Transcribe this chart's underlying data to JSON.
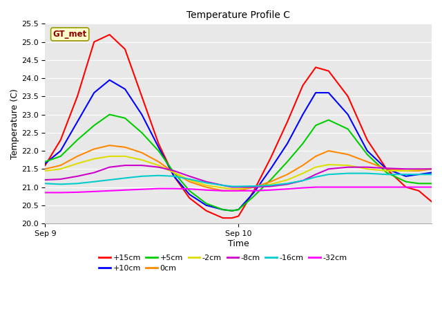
{
  "title": "Temperature Profile C",
  "xlabel": "Time",
  "ylabel": "Temperature (C)",
  "ylim": [
    20.0,
    25.5
  ],
  "yticks": [
    20.0,
    20.5,
    21.0,
    21.5,
    22.0,
    22.5,
    23.0,
    23.5,
    24.0,
    24.5,
    25.0,
    25.5
  ],
  "xtick_positions": [
    0,
    1.5
  ],
  "xtick_labels": [
    "Sep 9",
    "Sep 10"
  ],
  "xlim": [
    0,
    3.0
  ],
  "fig_bg": "#ffffff",
  "plot_bg": "#e8e8e8",
  "legend_label": "GT_met",
  "legend_bg": "#ffffcc",
  "legend_border": "#999900",
  "series": [
    {
      "label": "+15cm",
      "color": "#ff0000",
      "points": [
        [
          0,
          21.6
        ],
        [
          0.12,
          22.3
        ],
        [
          0.25,
          23.5
        ],
        [
          0.38,
          25.0
        ],
        [
          0.5,
          25.2
        ],
        [
          0.62,
          24.8
        ],
        [
          0.75,
          23.5
        ],
        [
          0.88,
          22.2
        ],
        [
          1.0,
          21.3
        ],
        [
          1.12,
          20.7
        ],
        [
          1.25,
          20.35
        ],
        [
          1.38,
          20.15
        ],
        [
          1.45,
          20.15
        ],
        [
          1.5,
          20.2
        ],
        [
          1.62,
          20.9
        ],
        [
          1.75,
          21.8
        ],
        [
          1.88,
          22.8
        ],
        [
          2.0,
          23.8
        ],
        [
          2.1,
          24.3
        ],
        [
          2.2,
          24.2
        ],
        [
          2.35,
          23.5
        ],
        [
          2.5,
          22.3
        ],
        [
          2.65,
          21.5
        ],
        [
          2.8,
          21.0
        ],
        [
          2.9,
          20.9
        ],
        [
          3.0,
          20.6
        ]
      ]
    },
    {
      "label": "+10cm",
      "color": "#0000ff",
      "points": [
        [
          0,
          21.65
        ],
        [
          0.12,
          22.0
        ],
        [
          0.25,
          22.8
        ],
        [
          0.38,
          23.6
        ],
        [
          0.5,
          23.95
        ],
        [
          0.62,
          23.7
        ],
        [
          0.75,
          23.0
        ],
        [
          0.88,
          22.1
        ],
        [
          1.0,
          21.3
        ],
        [
          1.12,
          20.8
        ],
        [
          1.25,
          20.5
        ],
        [
          1.38,
          20.38
        ],
        [
          1.45,
          20.35
        ],
        [
          1.5,
          20.38
        ],
        [
          1.62,
          20.85
        ],
        [
          1.75,
          21.5
        ],
        [
          1.88,
          22.2
        ],
        [
          2.0,
          23.0
        ],
        [
          2.1,
          23.6
        ],
        [
          2.2,
          23.6
        ],
        [
          2.35,
          23.0
        ],
        [
          2.5,
          22.0
        ],
        [
          2.65,
          21.5
        ],
        [
          2.8,
          21.3
        ],
        [
          2.9,
          21.35
        ],
        [
          3.0,
          21.4
        ]
      ]
    },
    {
      "label": "+5cm",
      "color": "#00cc00",
      "points": [
        [
          0,
          21.7
        ],
        [
          0.12,
          21.85
        ],
        [
          0.25,
          22.3
        ],
        [
          0.38,
          22.7
        ],
        [
          0.5,
          23.0
        ],
        [
          0.62,
          22.9
        ],
        [
          0.75,
          22.5
        ],
        [
          0.88,
          22.0
        ],
        [
          1.0,
          21.4
        ],
        [
          1.12,
          20.9
        ],
        [
          1.25,
          20.55
        ],
        [
          1.38,
          20.38
        ],
        [
          1.45,
          20.35
        ],
        [
          1.5,
          20.38
        ],
        [
          1.62,
          20.75
        ],
        [
          1.75,
          21.2
        ],
        [
          1.88,
          21.7
        ],
        [
          2.0,
          22.2
        ],
        [
          2.1,
          22.7
        ],
        [
          2.2,
          22.85
        ],
        [
          2.35,
          22.6
        ],
        [
          2.5,
          21.9
        ],
        [
          2.65,
          21.4
        ],
        [
          2.8,
          21.15
        ],
        [
          2.9,
          21.1
        ],
        [
          3.0,
          21.1
        ]
      ]
    },
    {
      "label": "0cm",
      "color": "#ff8800",
      "points": [
        [
          0,
          21.5
        ],
        [
          0.12,
          21.6
        ],
        [
          0.25,
          21.85
        ],
        [
          0.38,
          22.05
        ],
        [
          0.5,
          22.15
        ],
        [
          0.62,
          22.1
        ],
        [
          0.75,
          21.95
        ],
        [
          0.88,
          21.7
        ],
        [
          1.0,
          21.4
        ],
        [
          1.12,
          21.15
        ],
        [
          1.25,
          21.0
        ],
        [
          1.38,
          20.9
        ],
        [
          1.45,
          20.9
        ],
        [
          1.5,
          20.9
        ],
        [
          1.62,
          21.0
        ],
        [
          1.75,
          21.15
        ],
        [
          1.88,
          21.35
        ],
        [
          2.0,
          21.6
        ],
        [
          2.1,
          21.85
        ],
        [
          2.2,
          22.0
        ],
        [
          2.35,
          21.9
        ],
        [
          2.5,
          21.7
        ],
        [
          2.65,
          21.5
        ],
        [
          2.8,
          21.45
        ],
        [
          2.9,
          21.45
        ],
        [
          3.0,
          21.5
        ]
      ]
    },
    {
      "label": "-2cm",
      "color": "#dddd00",
      "points": [
        [
          0,
          21.45
        ],
        [
          0.12,
          21.5
        ],
        [
          0.25,
          21.65
        ],
        [
          0.38,
          21.78
        ],
        [
          0.5,
          21.85
        ],
        [
          0.62,
          21.85
        ],
        [
          0.75,
          21.75
        ],
        [
          0.88,
          21.6
        ],
        [
          1.0,
          21.4
        ],
        [
          1.12,
          21.2
        ],
        [
          1.25,
          21.05
        ],
        [
          1.38,
          20.98
        ],
        [
          1.45,
          20.95
        ],
        [
          1.5,
          20.95
        ],
        [
          1.62,
          21.0
        ],
        [
          1.75,
          21.08
        ],
        [
          1.88,
          21.2
        ],
        [
          2.0,
          21.38
        ],
        [
          2.1,
          21.55
        ],
        [
          2.2,
          21.62
        ],
        [
          2.35,
          21.6
        ],
        [
          2.5,
          21.5
        ],
        [
          2.65,
          21.45
        ],
        [
          2.8,
          21.45
        ],
        [
          2.9,
          21.48
        ],
        [
          3.0,
          21.5
        ]
      ]
    },
    {
      "label": "-8cm",
      "color": "#cc00cc",
      "points": [
        [
          0,
          21.2
        ],
        [
          0.12,
          21.22
        ],
        [
          0.25,
          21.3
        ],
        [
          0.38,
          21.4
        ],
        [
          0.5,
          21.55
        ],
        [
          0.62,
          21.6
        ],
        [
          0.75,
          21.6
        ],
        [
          0.88,
          21.55
        ],
        [
          1.0,
          21.45
        ],
        [
          1.12,
          21.3
        ],
        [
          1.25,
          21.15
        ],
        [
          1.38,
          21.05
        ],
        [
          1.45,
          21.0
        ],
        [
          1.5,
          21.0
        ],
        [
          1.62,
          21.0
        ],
        [
          1.75,
          21.02
        ],
        [
          1.88,
          21.08
        ],
        [
          2.0,
          21.18
        ],
        [
          2.1,
          21.35
        ],
        [
          2.2,
          21.5
        ],
        [
          2.35,
          21.55
        ],
        [
          2.5,
          21.55
        ],
        [
          2.65,
          21.52
        ],
        [
          2.8,
          21.5
        ],
        [
          2.9,
          21.5
        ],
        [
          3.0,
          21.5
        ]
      ]
    },
    {
      "label": "-16cm",
      "color": "#00cccc",
      "points": [
        [
          0,
          21.1
        ],
        [
          0.12,
          21.08
        ],
        [
          0.25,
          21.1
        ],
        [
          0.38,
          21.15
        ],
        [
          0.5,
          21.2
        ],
        [
          0.62,
          21.25
        ],
        [
          0.75,
          21.3
        ],
        [
          0.88,
          21.32
        ],
        [
          1.0,
          21.3
        ],
        [
          1.12,
          21.22
        ],
        [
          1.25,
          21.12
        ],
        [
          1.38,
          21.05
        ],
        [
          1.45,
          21.02
        ],
        [
          1.5,
          21.02
        ],
        [
          1.62,
          21.03
        ],
        [
          1.75,
          21.05
        ],
        [
          1.88,
          21.1
        ],
        [
          2.0,
          21.18
        ],
        [
          2.1,
          21.28
        ],
        [
          2.2,
          21.35
        ],
        [
          2.35,
          21.38
        ],
        [
          2.5,
          21.38
        ],
        [
          2.65,
          21.35
        ],
        [
          2.8,
          21.35
        ],
        [
          2.9,
          21.35
        ],
        [
          3.0,
          21.35
        ]
      ]
    },
    {
      "label": "-32cm",
      "color": "#ff00ff",
      "points": [
        [
          0,
          20.85
        ],
        [
          0.12,
          20.85
        ],
        [
          0.25,
          20.86
        ],
        [
          0.38,
          20.88
        ],
        [
          0.5,
          20.9
        ],
        [
          0.62,
          20.92
        ],
        [
          0.75,
          20.94
        ],
        [
          0.88,
          20.96
        ],
        [
          1.0,
          20.96
        ],
        [
          1.12,
          20.95
        ],
        [
          1.25,
          20.92
        ],
        [
          1.38,
          20.9
        ],
        [
          1.45,
          20.9
        ],
        [
          1.5,
          20.9
        ],
        [
          1.62,
          20.9
        ],
        [
          1.75,
          20.92
        ],
        [
          1.88,
          20.95
        ],
        [
          2.0,
          20.98
        ],
        [
          2.1,
          21.0
        ],
        [
          2.2,
          21.0
        ],
        [
          2.35,
          21.0
        ],
        [
          2.5,
          21.0
        ],
        [
          2.65,
          21.0
        ],
        [
          2.8,
          21.0
        ],
        [
          2.9,
          21.0
        ],
        [
          3.0,
          21.0
        ]
      ]
    }
  ]
}
